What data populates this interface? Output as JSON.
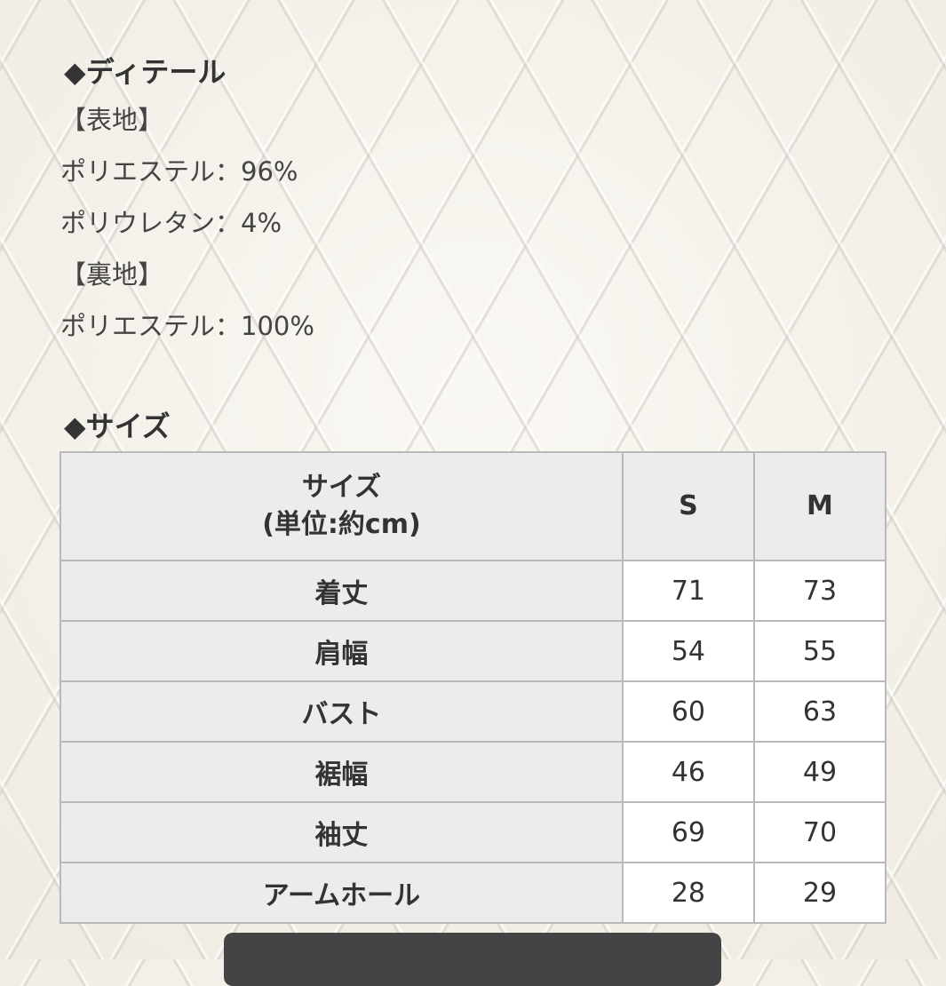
{
  "detail": {
    "title": "◆ディテール",
    "lines": [
      "【表地】",
      "ポリエステル：96%",
      "ポリウレタン：4%",
      "【裏地】",
      "ポリエステル：100%"
    ]
  },
  "size": {
    "title": "◆サイズ",
    "header": {
      "label_line1": "サイズ",
      "label_line2": "(単位:約cm)",
      "cols": [
        "S",
        "M"
      ]
    },
    "rows": [
      {
        "label": "着丈",
        "s": "71",
        "m": "73"
      },
      {
        "label": "肩幅",
        "s": "54",
        "m": "55"
      },
      {
        "label": "バスト",
        "s": "60",
        "m": "63"
      },
      {
        "label": "裾幅",
        "s": "46",
        "m": "49"
      },
      {
        "label": "袖丈",
        "s": "69",
        "m": "70"
      },
      {
        "label": "アームホール",
        "s": "28",
        "m": "29"
      }
    ]
  },
  "colors": {
    "header_bg": "#ececec",
    "button_bg": "#444444"
  }
}
